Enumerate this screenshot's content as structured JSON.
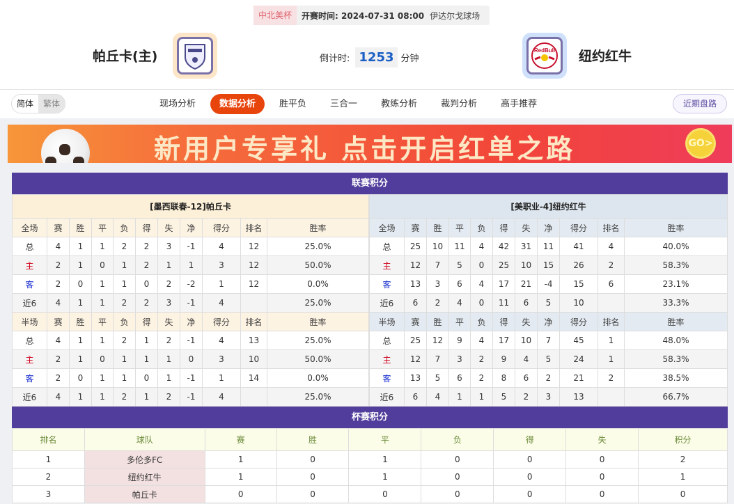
{
  "match": {
    "cup_tag": "中北美杯",
    "kickoff": "开赛时间: 2024-07-31 08:00",
    "venue": "伊达尔戈球场",
    "home_team": "帕丘卡(主)",
    "away_team": "纽约红牛",
    "countdown_label": "倒计时:",
    "countdown_value": "1253",
    "countdown_unit": "分钟",
    "home_logo_text": "PACHUCA",
    "away_logo_text": "Red Bull NEW YORK"
  },
  "nav": {
    "lang": [
      "简体",
      "繁体"
    ],
    "tabs": [
      "现场分析",
      "数据分析",
      "胜平负",
      "三合一",
      "教练分析",
      "裁判分析",
      "高手推荐"
    ],
    "active_tab": "数据分析",
    "recent_button": "近期盘路"
  },
  "banner": {
    "text": "新用户专享礼  点击开启红单之路",
    "go": "GO>"
  },
  "colors": {
    "accent": "#e8450c",
    "section_bar": "#513d9b",
    "home_red": "#d0021b",
    "away_blue": "#1a2fd0",
    "countdown_blue": "#1b5fc6"
  },
  "league": {
    "title": "联赛积分",
    "columns": [
      "赛",
      "胜",
      "平",
      "负",
      "得",
      "失",
      "净",
      "得分",
      "排名",
      "胜率"
    ],
    "home": {
      "header": "[墨西联春-12]帕丘卡",
      "full": {
        "label": "全场",
        "rows": [
          [
            "总",
            "4",
            "1",
            "1",
            "2",
            "2",
            "3",
            "-1",
            "4",
            "12",
            "25.0%"
          ],
          [
            "主",
            "2",
            "1",
            "0",
            "1",
            "2",
            "1",
            "1",
            "3",
            "12",
            "50.0%"
          ],
          [
            "客",
            "2",
            "0",
            "1",
            "1",
            "0",
            "2",
            "-2",
            "1",
            "12",
            "0.0%"
          ],
          [
            "近6",
            "4",
            "1",
            "1",
            "2",
            "2",
            "3",
            "-1",
            "4",
            "",
            "25.0%"
          ]
        ]
      },
      "half": {
        "label": "半场",
        "rows": [
          [
            "总",
            "4",
            "1",
            "1",
            "2",
            "1",
            "2",
            "-1",
            "4",
            "13",
            "25.0%"
          ],
          [
            "主",
            "2",
            "1",
            "0",
            "1",
            "1",
            "1",
            "0",
            "3",
            "10",
            "50.0%"
          ],
          [
            "客",
            "2",
            "0",
            "1",
            "1",
            "0",
            "1",
            "-1",
            "1",
            "14",
            "0.0%"
          ],
          [
            "近6",
            "4",
            "1",
            "1",
            "2",
            "1",
            "2",
            "-1",
            "4",
            "",
            "25.0%"
          ]
        ]
      }
    },
    "away": {
      "header": "[美职业-4]纽约红牛",
      "full": {
        "label": "全场",
        "rows": [
          [
            "总",
            "25",
            "10",
            "11",
            "4",
            "42",
            "31",
            "11",
            "41",
            "4",
            "40.0%"
          ],
          [
            "主",
            "12",
            "7",
            "5",
            "0",
            "25",
            "10",
            "15",
            "26",
            "2",
            "58.3%"
          ],
          [
            "客",
            "13",
            "3",
            "6",
            "4",
            "17",
            "21",
            "-4",
            "15",
            "6",
            "23.1%"
          ],
          [
            "近6",
            "6",
            "2",
            "4",
            "0",
            "11",
            "6",
            "5",
            "10",
            "",
            "33.3%"
          ]
        ]
      },
      "half": {
        "label": "半场",
        "rows": [
          [
            "总",
            "25",
            "12",
            "9",
            "4",
            "17",
            "10",
            "7",
            "45",
            "1",
            "48.0%"
          ],
          [
            "主",
            "12",
            "7",
            "3",
            "2",
            "9",
            "4",
            "5",
            "24",
            "1",
            "58.3%"
          ],
          [
            "客",
            "13",
            "5",
            "6",
            "2",
            "8",
            "6",
            "2",
            "21",
            "2",
            "38.5%"
          ],
          [
            "近6",
            "6",
            "4",
            "1",
            "1",
            "5",
            "2",
            "3",
            "13",
            "",
            "66.7%"
          ]
        ]
      }
    }
  },
  "cup": {
    "title": "杯赛积分",
    "columns": [
      "排名",
      "球队",
      "赛",
      "胜",
      "平",
      "负",
      "得",
      "失",
      "积分"
    ],
    "rows": [
      [
        "1",
        "多伦多FC",
        "1",
        "0",
        "1",
        "0",
        "0",
        "0",
        "2"
      ],
      [
        "2",
        "纽约红牛",
        "1",
        "0",
        "1",
        "0",
        "0",
        "0",
        "1"
      ],
      [
        "3",
        "帕丘卡",
        "0",
        "0",
        "0",
        "0",
        "0",
        "0",
        "0"
      ]
    ]
  }
}
